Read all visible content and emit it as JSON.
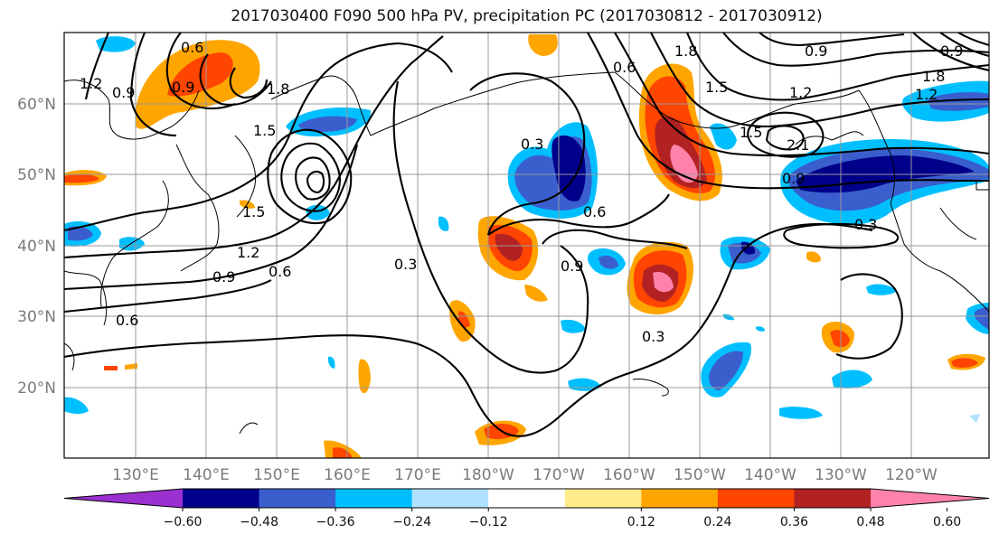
{
  "title": "2017030400 F090 500 hPa PV, precipitation PC (2017030812 - 2017030912)",
  "map": {
    "lat_labels": [
      "60°N",
      "50°N",
      "40°N",
      "30°N",
      "20°N"
    ],
    "lon_labels": [
      "130°E",
      "140°E",
      "150°E",
      "160°E",
      "170°E",
      "180°W",
      "170°W",
      "160°W",
      "150°W",
      "140°W",
      "130°W",
      "120°W"
    ],
    "contour_labels": [
      "1.2",
      "0.9",
      "0.6",
      "0.9",
      "1.5",
      "1.8",
      "1.5",
      "1.2",
      "0.9",
      "0.6",
      "0.3",
      "0.6",
      "0.6",
      "0.9",
      "0.3",
      "0.3",
      "0.9",
      "1.2",
      "1.5",
      "1.8",
      "2.1",
      "1.2",
      "1.5",
      "1.8",
      "0.9",
      "0.3",
      "0.6",
      "0.9"
    ]
  },
  "colorbar": {
    "colors": [
      "#9b30d0",
      "#00008b",
      "#3a5fcd",
      "#00bfff",
      "#b0e2ff",
      "#ffffff",
      "#ffec8b",
      "#ffa500",
      "#ff4500",
      "#b22222",
      "#ff82ab"
    ],
    "tick_labels": [
      "−0.60",
      "−0.48",
      "−0.36",
      "−0.24",
      "−0.12",
      "0.12",
      "0.24",
      "0.36",
      "0.48",
      "0.60"
    ]
  }
}
